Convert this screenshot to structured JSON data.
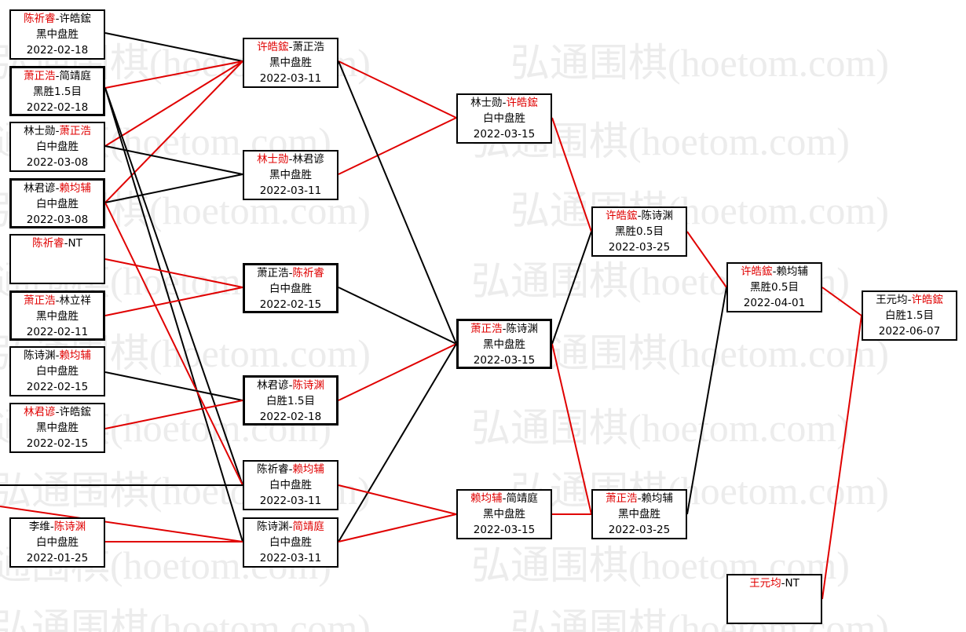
{
  "watermark": "弘通围棋(hoetom.com)",
  "separator": "-",
  "nodes": [
    {
      "players": [
        "陈祈睿",
        "许皓鋐"
      ],
      "winner": 0,
      "result": "黑中盘胜",
      "date": "2022-02-18"
    },
    {
      "players": [
        "萧正浩",
        "简靖庭"
      ],
      "winner": 0,
      "result": "黑胜1.5目",
      "date": "2022-02-18"
    },
    {
      "players": [
        "林士勋",
        "萧正浩"
      ],
      "winner": 1,
      "result": "白中盘胜",
      "date": "2022-03-08"
    },
    {
      "players": [
        "林君谚",
        "赖均辅"
      ],
      "winner": 1,
      "result": "白中盘胜",
      "date": "2022-03-08"
    },
    {
      "players": [
        "陈祈睿",
        "NT"
      ],
      "winner": 0
    },
    {
      "players": [
        "萧正浩",
        "林立祥"
      ],
      "winner": 0,
      "result": "黑中盘胜",
      "date": "2022-02-11"
    },
    {
      "players": [
        "陈诗渊",
        "赖均辅"
      ],
      "winner": 1,
      "result": "白中盘胜",
      "date": "2022-02-15"
    },
    {
      "players": [
        "林君谚",
        "许皓鋐"
      ],
      "winner": 0,
      "result": "黑中盘胜",
      "date": "2022-02-15"
    },
    {
      "players": [
        "李维",
        "陈诗渊"
      ],
      "winner": 1,
      "result": "白中盘胜",
      "date": "2022-01-25"
    },
    {
      "players": [
        "许皓鋐",
        "萧正浩"
      ],
      "winner": 0,
      "result": "黑中盘胜",
      "date": "2022-03-11"
    },
    {
      "players": [
        "林士勋",
        "林君谚"
      ],
      "winner": 0,
      "result": "黑中盘胜",
      "date": "2022-03-11"
    },
    {
      "players": [
        "萧正浩",
        "陈祈睿"
      ],
      "winner": 1,
      "result": "白中盘胜",
      "date": "2022-02-15"
    },
    {
      "players": [
        "林君谚",
        "陈诗渊"
      ],
      "winner": 1,
      "result": "白胜1.5目",
      "date": "2022-02-18"
    },
    {
      "players": [
        "陈祈睿",
        "赖均辅"
      ],
      "winner": 1,
      "result": "白中盘胜",
      "date": "2022-03-11"
    },
    {
      "players": [
        "陈诗渊",
        "简靖庭"
      ],
      "winner": 1,
      "result": "白中盘胜",
      "date": "2022-03-11"
    },
    {
      "players": [
        "林士勋",
        "许皓鋐"
      ],
      "winner": 1,
      "result": "白中盘胜",
      "date": "2022-03-15"
    },
    {
      "players": [
        "萧正浩",
        "陈诗渊"
      ],
      "winner": 0,
      "result": "黑中盘胜",
      "date": "2022-03-15"
    },
    {
      "players": [
        "赖均辅",
        "简靖庭"
      ],
      "winner": 0,
      "result": "黑中盘胜",
      "date": "2022-03-15"
    },
    {
      "players": [
        "许皓鋐",
        "陈诗渊"
      ],
      "winner": 0,
      "result": "黑胜0.5目",
      "date": "2022-03-25"
    },
    {
      "players": [
        "萧正浩",
        "赖均辅"
      ],
      "winner": 0,
      "result": "黑中盘胜",
      "date": "2022-03-25"
    },
    {
      "players": [
        "许皓鋐",
        "赖均辅"
      ],
      "winner": 0,
      "result": "黑胜0.5目",
      "date": "2022-04-01"
    },
    {
      "players": [
        "王元均",
        "NT"
      ],
      "winner": 0
    },
    {
      "players": [
        "王元均",
        "许皓鋐"
      ],
      "winner": 1,
      "result": "白胜1.5目",
      "date": "2022-06-07"
    }
  ]
}
